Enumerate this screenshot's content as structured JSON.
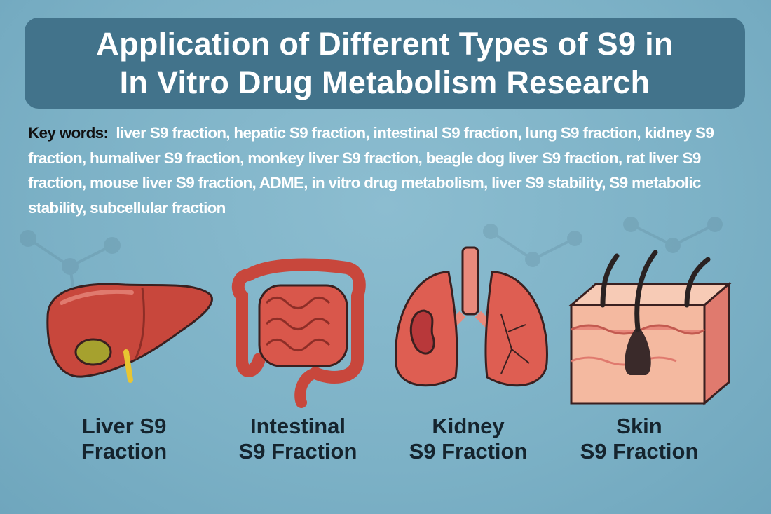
{
  "title": {
    "line1": "Application of Different Types of S9 in",
    "line2": "In Vitro Drug Metabolism Research"
  },
  "keywords": {
    "label": "Key words:",
    "text": "liver S9 fraction, hepatic S9 fraction, intestinal S9 fraction, lung S9 fraction, kidney S9 fraction, humaliver S9 fraction, monkey liver S9 fraction, beagle dog liver S9 fraction, rat liver S9 fraction, mouse  liver S9 fraction, ADME, in vitro drug metabolism, liver S9 stability, S9 metabolic stability, subcellular fraction"
  },
  "organs": [
    {
      "icon": "liver-icon",
      "line1": "Liver S9",
      "line2": "Fraction"
    },
    {
      "icon": "intestine-icon",
      "line1": "Intestinal",
      "line2": "S9 Fraction"
    },
    {
      "icon": "lungs-kidney-icon",
      "line1": "Kidney",
      "line2": "S9 Fraction"
    },
    {
      "icon": "skin-icon",
      "line1": "Skin",
      "line2": "S9 Fraction"
    }
  ],
  "colors": {
    "background": "#7cb1c6",
    "title_box": "#42738b",
    "organ_red": "#c8473c",
    "skin": "#f4b9a0"
  }
}
